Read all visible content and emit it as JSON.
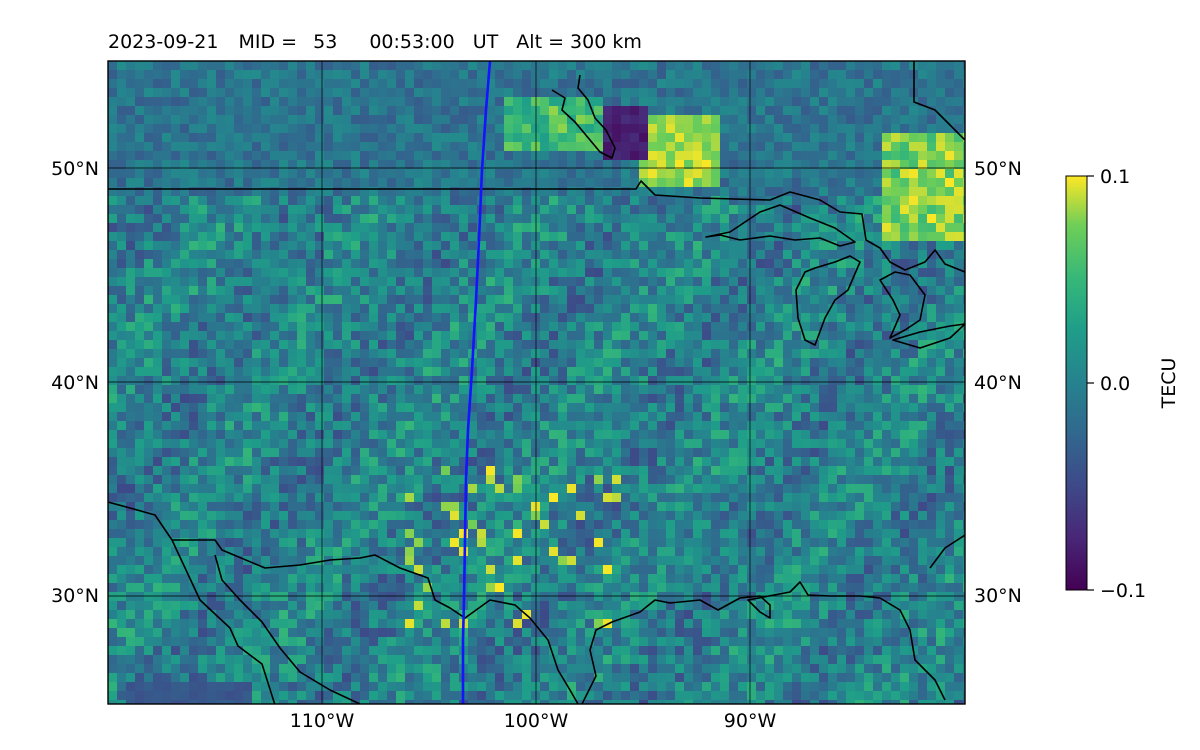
{
  "header": {
    "date": "2023-09-21",
    "mid_label": "MID =",
    "mid_value": "53",
    "time": "00:53:00",
    "time_unit": "UT",
    "alt_label": "Alt = 300 km"
  },
  "map": {
    "lon_ticks": [
      {
        "value": -110,
        "label": "110°W"
      },
      {
        "value": -100,
        "label": "100°W"
      },
      {
        "value": -90,
        "label": "90°W"
      }
    ],
    "lat_ticks": [
      {
        "value": 30,
        "label": "30°N"
      },
      {
        "value": 40,
        "label": "40°N"
      },
      {
        "value": 50,
        "label": "50°N"
      }
    ],
    "lon_range": [
      -120,
      -80
    ],
    "lat_range": [
      25,
      55
    ],
    "grid": true,
    "track_color": "#1414ff"
  },
  "colorbar": {
    "label": "TECU",
    "ticks": [
      {
        "value": 0.1,
        "label": "0.1"
      },
      {
        "value": 0.0,
        "label": "0.0"
      },
      {
        "value": -0.1,
        "label": "−0.1"
      }
    ],
    "range": [
      -0.1,
      0.1
    ],
    "colormap": "viridis"
  }
}
